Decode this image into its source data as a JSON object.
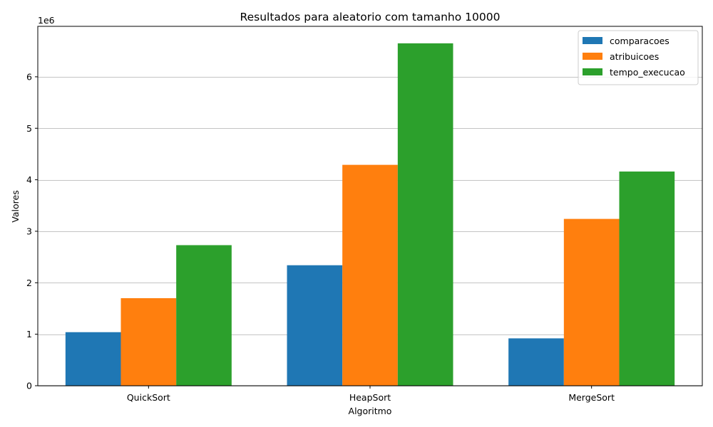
{
  "chart_data": {
    "type": "bar",
    "title": "Resultados para aleatorio com tamanho 10000",
    "xlabel": "Algoritmo",
    "ylabel": "Valores",
    "y_offset_label": "1e6",
    "categories": [
      "QuickSort",
      "HeapSort",
      "MergeSort"
    ],
    "series": [
      {
        "name": "comparacoes",
        "color": "#1f77b4",
        "values": [
          1040000,
          2340000,
          920000
        ]
      },
      {
        "name": "atribuicoes",
        "color": "#ff7f0e",
        "values": [
          1700000,
          4290000,
          3240000
        ]
      },
      {
        "name": "tempo_execucao",
        "color": "#2ca02c",
        "values": [
          2730000,
          6650000,
          4160000
        ]
      }
    ],
    "ylim": [
      0,
      6980000
    ],
    "yticks": [
      0,
      1000000,
      2000000,
      3000000,
      4000000,
      5000000,
      6000000
    ],
    "ytick_labels": [
      "0",
      "1",
      "2",
      "3",
      "4",
      "5",
      "6"
    ],
    "grid": "y",
    "legend_position": "top-right"
  }
}
